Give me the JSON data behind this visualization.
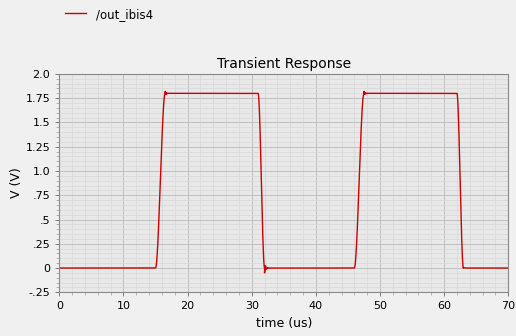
{
  "title": "Transient Response",
  "xlabel": "time (us)",
  "ylabel": "V (V)",
  "legend_label": "/out_ibis4",
  "line_color": "#cc0000",
  "bg_color": "#f0f0f0",
  "plot_bg_color": "#e8e8e8",
  "grid_major_color": "#c8c8c8",
  "grid_minor_color": "#dcdcdc",
  "xlim": [
    0,
    70
  ],
  "ylim": [
    -0.25,
    2.0
  ],
  "xticks": [
    0,
    10,
    20,
    30,
    40,
    50,
    60,
    70
  ],
  "yticks": [
    -0.25,
    0,
    0.25,
    0.5,
    0.75,
    1.0,
    1.25,
    1.5,
    1.75,
    2.0
  ],
  "ytick_labels": [
    "-.25",
    "0",
    ".25",
    ".5",
    ".75",
    "1.0",
    "1.25",
    "1.5",
    "1.75",
    "2.0"
  ],
  "xtick_labels": [
    "0",
    "10",
    "20",
    "30",
    "40",
    "50",
    "60",
    "70"
  ],
  "low_val": 0.0,
  "high_val": 1.8,
  "rise_time": 1.5,
  "fall_time": 1.0,
  "transitions": [
    {
      "type": "rise",
      "start": 15.0
    },
    {
      "type": "fall",
      "start": 31.0
    },
    {
      "type": "rise",
      "start": 46.0
    },
    {
      "type": "fall",
      "start": 62.0
    }
  ],
  "total_time": 70
}
